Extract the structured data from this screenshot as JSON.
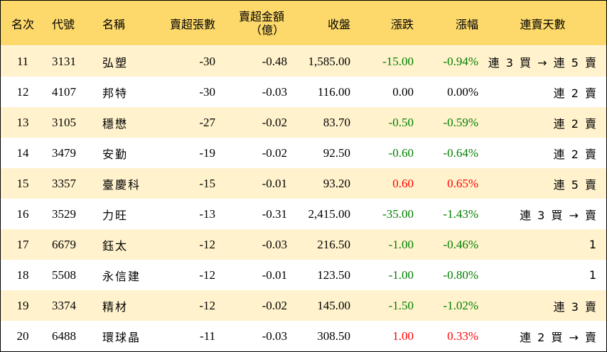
{
  "colors": {
    "header_bg": "#fdd96b",
    "band_bg": "#fff2cc",
    "up": "#ff0000",
    "down": "#008000",
    "flat": "#000000"
  },
  "headers": {
    "rank": "名次",
    "code": "代號",
    "name": "名稱",
    "lots": "賣超張數",
    "amount_line1": "賣超金額",
    "amount_line2": "（億）",
    "close": "收盤",
    "change": "漲跌",
    "pct": "漲幅",
    "days": "連賣天數"
  },
  "rows": [
    {
      "rank": "11",
      "code": "3131",
      "name": "弘塑",
      "lots": "-30",
      "amount": "-0.48",
      "close": "1,585.00",
      "change": "-15.00",
      "pct": "-0.94%",
      "days": "連 3 買 → 連 5 賣",
      "trend": "down"
    },
    {
      "rank": "12",
      "code": "4107",
      "name": "邦特",
      "lots": "-30",
      "amount": "-0.03",
      "close": "116.00",
      "change": "0.00",
      "pct": "0.00%",
      "days": "連 2 賣",
      "trend": "flat"
    },
    {
      "rank": "13",
      "code": "3105",
      "name": "穩懋",
      "lots": "-27",
      "amount": "-0.02",
      "close": "83.70",
      "change": "-0.50",
      "pct": "-0.59%",
      "days": "連 2 賣",
      "trend": "down"
    },
    {
      "rank": "14",
      "code": "3479",
      "name": "安勤",
      "lots": "-19",
      "amount": "-0.02",
      "close": "92.50",
      "change": "-0.60",
      "pct": "-0.64%",
      "days": "連 2 賣",
      "trend": "down"
    },
    {
      "rank": "15",
      "code": "3357",
      "name": "臺慶科",
      "lots": "-15",
      "amount": "-0.01",
      "close": "93.20",
      "change": "0.60",
      "pct": "0.65%",
      "days": "連 5 賣",
      "trend": "up"
    },
    {
      "rank": "16",
      "code": "3529",
      "name": "力旺",
      "lots": "-13",
      "amount": "-0.31",
      "close": "2,415.00",
      "change": "-35.00",
      "pct": "-1.43%",
      "days": "連 3 買 → 賣",
      "trend": "down"
    },
    {
      "rank": "17",
      "code": "6679",
      "name": "鈺太",
      "lots": "-12",
      "amount": "-0.03",
      "close": "216.50",
      "change": "-1.00",
      "pct": "-0.46%",
      "days": "1",
      "trend": "down"
    },
    {
      "rank": "18",
      "code": "5508",
      "name": "永信建",
      "lots": "-12",
      "amount": "-0.01",
      "close": "123.50",
      "change": "-1.00",
      "pct": "-0.80%",
      "days": "1",
      "trend": "down"
    },
    {
      "rank": "19",
      "code": "3374",
      "name": "精材",
      "lots": "-12",
      "amount": "-0.02",
      "close": "145.00",
      "change": "-1.50",
      "pct": "-1.02%",
      "days": "連 3 賣",
      "trend": "down"
    },
    {
      "rank": "20",
      "code": "6488",
      "name": "環球晶",
      "lots": "-11",
      "amount": "-0.03",
      "close": "308.50",
      "change": "1.00",
      "pct": "0.33%",
      "days": "連 2 買 → 賣",
      "trend": "up"
    }
  ]
}
